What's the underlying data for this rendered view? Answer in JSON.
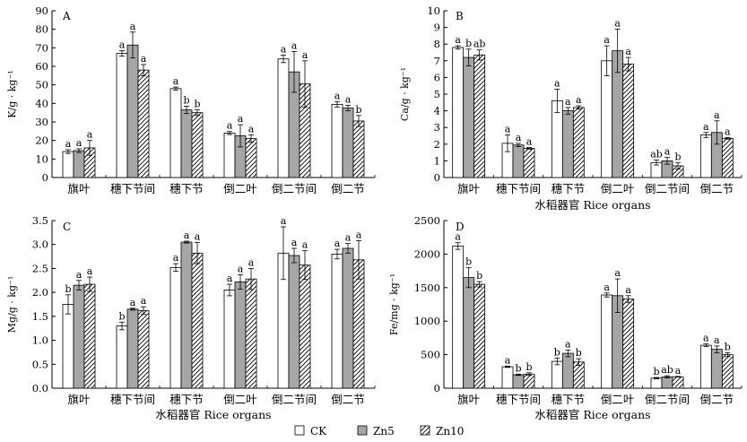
{
  "legend": [
    {
      "name": "CK",
      "fill": "white"
    },
    {
      "name": "Zn5",
      "fill": "gray"
    },
    {
      "name": "Zn10",
      "fill": "hatch"
    }
  ],
  "colors": {
    "ck": "#ffffff",
    "zn5": "#a6a6a6",
    "zn10_hatch": "#000000",
    "axis": "#000000"
  },
  "chart_data": [
    {
      "type": "bar",
      "panel_label": "A",
      "ylabel": "K/g · kg⁻¹",
      "xlabel": "",
      "ylim": [
        0,
        90
      ],
      "yticks": [
        0,
        10,
        20,
        30,
        40,
        50,
        60,
        70,
        80,
        90
      ],
      "categories": [
        "旗叶",
        "穗下节间",
        "穗下节",
        "倒二叶",
        "倒二节间",
        "倒二节"
      ],
      "series": [
        {
          "name": "CK",
          "values": [
            14,
            67,
            48,
            24,
            64,
            39.5
          ],
          "errors": [
            1,
            1.5,
            0.8,
            0.8,
            2,
            1.5
          ],
          "letters": [
            "a",
            "a",
            "a",
            "a",
            "a",
            "a"
          ]
        },
        {
          "name": "Zn5",
          "values": [
            14.5,
            71.5,
            36.5,
            22.5,
            57,
            37.5
          ],
          "errors": [
            1,
            7,
            2,
            6,
            11,
            1.5
          ],
          "letters": [
            "a",
            "a",
            "b",
            "a",
            "a",
            "a"
          ]
        },
        {
          "name": "Zn10",
          "values": [
            16,
            58,
            35,
            21,
            50.5,
            30.5
          ],
          "errors": [
            4,
            3,
            1.5,
            2,
            12.5,
            3
          ],
          "letters": [
            "a",
            "a",
            "b",
            "a",
            "a",
            "b"
          ]
        }
      ]
    },
    {
      "type": "bar",
      "panel_label": "B",
      "ylabel": "Ca/g · kg⁻¹",
      "xlabel": "水稻器官 Rice organs",
      "ylim": [
        0,
        10
      ],
      "yticks": [
        0,
        1,
        2,
        3,
        4,
        5,
        6,
        7,
        8,
        9,
        10
      ],
      "categories": [
        "旗叶",
        "穗下节间",
        "穗下节",
        "倒二叶",
        "倒二节间",
        "倒二节"
      ],
      "series": [
        {
          "name": "CK",
          "values": [
            7.8,
            2.05,
            4.6,
            7.0,
            0.9,
            2.55
          ],
          "errors": [
            0.1,
            0.5,
            0.7,
            0.9,
            0.15,
            0.15
          ],
          "letters": [
            "a",
            "a",
            "a",
            "a",
            "ab",
            "a"
          ]
        },
        {
          "name": "Zn5",
          "values": [
            7.2,
            1.95,
            4.0,
            7.6,
            1.0,
            2.7
          ],
          "errors": [
            0.5,
            0.1,
            0.2,
            1.3,
            0.2,
            0.7
          ],
          "letters": [
            "b",
            "a",
            "a",
            "a",
            "a",
            "a"
          ]
        },
        {
          "name": "Zn10",
          "values": [
            7.35,
            1.75,
            4.2,
            6.8,
            0.7,
            2.35
          ],
          "errors": [
            0.3,
            0.05,
            0.1,
            0.4,
            0.2,
            0.05
          ],
          "letters": [
            "ab",
            "a",
            "a",
            "a",
            "b",
            "a"
          ]
        }
      ]
    },
    {
      "type": "bar",
      "panel_label": "C",
      "ylabel": "Mg/g · kg⁻¹",
      "xlabel": "水稻器官 Rice organs",
      "ylim": [
        0,
        3.5
      ],
      "yticks": [
        0,
        0.5,
        1.0,
        1.5,
        2.0,
        2.5,
        3.0,
        3.5
      ],
      "categories": [
        "旗叶",
        "穗下节间",
        "穗下节",
        "倒二叶",
        "倒二节间",
        "倒二节"
      ],
      "series": [
        {
          "name": "CK",
          "values": [
            1.75,
            1.3,
            2.52,
            2.05,
            2.82,
            2.8
          ],
          "errors": [
            0.2,
            0.08,
            0.08,
            0.12,
            0.55,
            0.1
          ],
          "letters": [
            "b",
            "b",
            "a",
            "a",
            "a",
            "a"
          ]
        },
        {
          "name": "Zn5",
          "values": [
            2.15,
            1.65,
            3.05,
            2.22,
            2.77,
            2.92
          ],
          "errors": [
            0.1,
            0.02,
            0.02,
            0.15,
            0.15,
            0.1
          ],
          "letters": [
            "a",
            "a",
            "a",
            "a",
            "a",
            "a"
          ]
        },
        {
          "name": "Zn10",
          "values": [
            2.17,
            1.62,
            2.82,
            2.28,
            2.57,
            2.68
          ],
          "errors": [
            0.15,
            0.08,
            0.22,
            0.22,
            0.3,
            0.4
          ],
          "letters": [
            "a",
            "a",
            "a",
            "a",
            "a",
            "a"
          ]
        }
      ]
    },
    {
      "type": "bar",
      "panel_label": "D",
      "ylabel": "Fe/mg · kg⁻¹",
      "xlabel": "水稻器官 Rice organs",
      "ylim": [
        0,
        2500
      ],
      "yticks": [
        0,
        500,
        1000,
        1500,
        2000,
        2500
      ],
      "categories": [
        "旗叶",
        "穗下节间",
        "穗下节",
        "倒二叶",
        "倒二节间",
        "倒二节"
      ],
      "series": [
        {
          "name": "CK",
          "values": [
            2120,
            320,
            400,
            1390,
            150,
            640
          ],
          "errors": [
            50,
            10,
            50,
            30,
            10,
            20
          ],
          "letters": [
            "a",
            "a",
            "b",
            "a",
            "b",
            "a"
          ]
        },
        {
          "name": "Zn5",
          "values": [
            1650,
            200,
            520,
            1380,
            170,
            580
          ],
          "errors": [
            150,
            10,
            50,
            250,
            15,
            50
          ],
          "letters": [
            "b",
            "b",
            "a",
            "a",
            "ab",
            "a"
          ]
        },
        {
          "name": "Zn10",
          "values": [
            1550,
            210,
            390,
            1330,
            170,
            500
          ],
          "errors": [
            40,
            20,
            50,
            50,
            5,
            30
          ],
          "letters": [
            "b",
            "b",
            "b",
            "a",
            "a",
            "b"
          ]
        }
      ]
    }
  ]
}
